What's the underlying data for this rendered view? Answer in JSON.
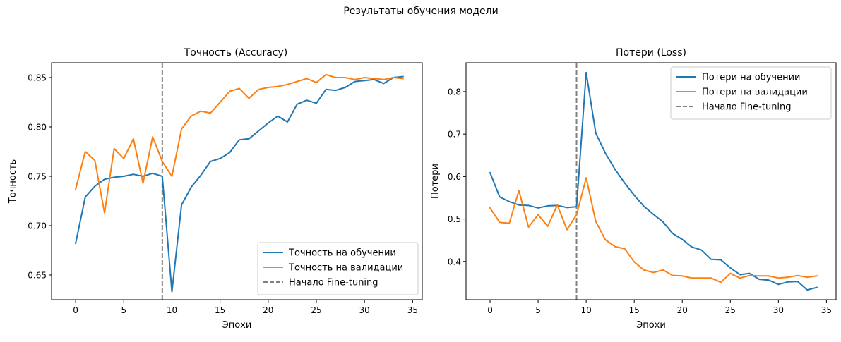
{
  "figure": {
    "suptitle": "Результаты обучения модели"
  },
  "colors": {
    "train": "#1f77b4",
    "val": "#ff7f0e",
    "vline": "#808080"
  },
  "chart_data": [
    {
      "type": "line",
      "title": "Точность (Accuracy)",
      "xlabel": "Эпохи",
      "ylabel": "Точность",
      "xlim": [
        -2.5,
        36.0
      ],
      "ylim": [
        0.625,
        0.865
      ],
      "xticks": [
        0,
        5,
        10,
        15,
        20,
        25,
        30,
        35
      ],
      "xtick_labels": [
        "0",
        "5",
        "10",
        "15",
        "20",
        "25",
        "30",
        "35"
      ],
      "yticks": [
        0.65,
        0.7,
        0.75,
        0.8,
        0.85
      ],
      "ytick_labels": [
        "0.65",
        "0.70",
        "0.75",
        "0.80",
        "0.85"
      ],
      "legend_position": "lower-right",
      "vline": {
        "x": 9,
        "label": "Начало Fine-tuning"
      },
      "x": [
        0,
        1,
        2,
        3,
        4,
        5,
        6,
        7,
        8,
        9,
        10,
        11,
        12,
        13,
        14,
        15,
        16,
        17,
        18,
        19,
        20,
        21,
        22,
        23,
        24,
        25,
        26,
        27,
        28,
        29,
        30,
        31,
        32,
        33,
        34
      ],
      "series": [
        {
          "name": "Точность на обучении",
          "color_key": "train",
          "values": [
            0.682,
            0.729,
            0.74,
            0.747,
            0.749,
            0.75,
            0.752,
            0.75,
            0.753,
            0.75,
            0.633,
            0.721,
            0.739,
            0.751,
            0.765,
            0.768,
            0.774,
            0.787,
            0.788,
            0.796,
            0.804,
            0.811,
            0.805,
            0.823,
            0.827,
            0.824,
            0.838,
            0.837,
            0.84,
            0.846,
            0.847,
            0.848,
            0.844,
            0.85,
            0.851
          ]
        },
        {
          "name": "Точность на валидации",
          "color_key": "val",
          "values": [
            0.737,
            0.775,
            0.766,
            0.713,
            0.778,
            0.768,
            0.788,
            0.743,
            0.79,
            0.765,
            0.75,
            0.798,
            0.811,
            0.816,
            0.814,
            0.825,
            0.836,
            0.839,
            0.829,
            0.838,
            0.84,
            0.841,
            0.843,
            0.846,
            0.849,
            0.845,
            0.853,
            0.85,
            0.85,
            0.848,
            0.85,
            0.849,
            0.848,
            0.85,
            0.849
          ]
        }
      ]
    },
    {
      "type": "line",
      "title": "Потери (Loss)",
      "xlabel": "Эпохи",
      "ylabel": "Потери",
      "xlim": [
        -2.5,
        36.0
      ],
      "ylim": [
        0.31,
        0.868
      ],
      "xticks": [
        0,
        5,
        10,
        15,
        20,
        25,
        30,
        35
      ],
      "xtick_labels": [
        "0",
        "5",
        "10",
        "15",
        "20",
        "25",
        "30",
        "35"
      ],
      "yticks": [
        0.4,
        0.5,
        0.6,
        0.7,
        0.8
      ],
      "ytick_labels": [
        "0.4",
        "0.5",
        "0.6",
        "0.7",
        "0.8"
      ],
      "legend_position": "upper-right",
      "vline": {
        "x": 9,
        "label": "Начало Fine-tuning"
      },
      "x": [
        0,
        1,
        2,
        3,
        4,
        5,
        6,
        7,
        8,
        9,
        10,
        11,
        12,
        13,
        14,
        15,
        16,
        17,
        18,
        19,
        20,
        21,
        22,
        23,
        24,
        25,
        26,
        27,
        28,
        29,
        30,
        31,
        32,
        33,
        34
      ],
      "series": [
        {
          "name": "Потери на обучении",
          "color_key": "train",
          "values": [
            0.609,
            0.552,
            0.541,
            0.533,
            0.532,
            0.526,
            0.531,
            0.532,
            0.527,
            0.529,
            0.845,
            0.702,
            0.655,
            0.617,
            0.585,
            0.556,
            0.53,
            0.511,
            0.493,
            0.466,
            0.452,
            0.434,
            0.427,
            0.405,
            0.404,
            0.385,
            0.369,
            0.372,
            0.358,
            0.356,
            0.346,
            0.352,
            0.353,
            0.333,
            0.339
          ]
        },
        {
          "name": "Потери на валидации",
          "color_key": "val",
          "values": [
            0.526,
            0.492,
            0.49,
            0.567,
            0.481,
            0.51,
            0.483,
            0.533,
            0.475,
            0.51,
            0.597,
            0.494,
            0.451,
            0.435,
            0.43,
            0.399,
            0.38,
            0.374,
            0.38,
            0.367,
            0.366,
            0.361,
            0.361,
            0.361,
            0.351,
            0.372,
            0.361,
            0.367,
            0.366,
            0.366,
            0.361,
            0.363,
            0.367,
            0.363,
            0.366
          ]
        }
      ]
    }
  ]
}
